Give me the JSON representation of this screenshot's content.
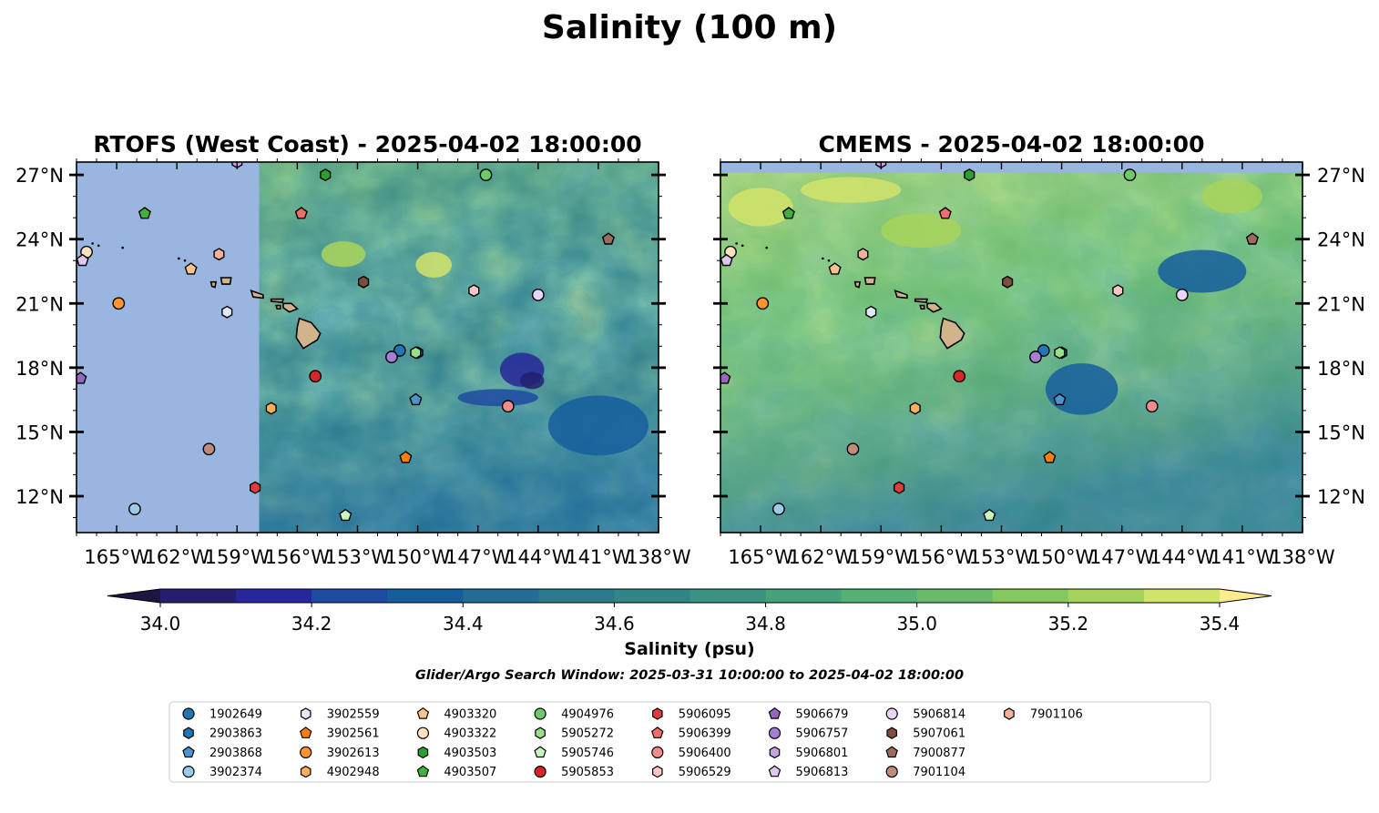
{
  "chart_data": {
    "type": "heatmap",
    "title": "Salinity (100 m)",
    "colorbar": {
      "label": "Salinity (psu)",
      "min": 34.0,
      "max": 35.4,
      "step": 0.1,
      "ticks": [
        "34.0",
        "34.2",
        "34.4",
        "34.6",
        "34.8",
        "35.0",
        "35.2",
        "35.4"
      ],
      "colors": [
        "#231f6e",
        "#28279a",
        "#1f4aa1",
        "#155e9d",
        "#236c93",
        "#2b7a8c",
        "#318586",
        "#3a9281",
        "#46a27b",
        "#55b073",
        "#68bb69",
        "#84c85f",
        "#a8d35b",
        "#d2e36a"
      ],
      "under_color": "#1d1640",
      "over_color": "#fdeb8f"
    },
    "subtitle": "Glider/Argo Search Window: 2025-03-31 10:00:00 to 2025-04-02 18:00:00",
    "x_ticks": [
      {
        "lon": -165,
        "label": "165°W"
      },
      {
        "lon": -162,
        "label": "162°W"
      },
      {
        "lon": -159,
        "label": "159°W"
      },
      {
        "lon": -156,
        "label": "156°W"
      },
      {
        "lon": -153,
        "label": "153°W"
      },
      {
        "lon": -150,
        "label": "150°W"
      },
      {
        "lon": -147,
        "label": "147°W"
      },
      {
        "lon": -144,
        "label": "144°W"
      },
      {
        "lon": -141,
        "label": "141°W"
      },
      {
        "lon": -138,
        "label": "138°W"
      }
    ],
    "y_ticks": [
      {
        "lat": 12,
        "label": "12°N"
      },
      {
        "lat": 15,
        "label": "15°N"
      },
      {
        "lat": 18,
        "label": "18°N"
      },
      {
        "lat": 21,
        "label": "21°N"
      },
      {
        "lat": 24,
        "label": "24°N"
      },
      {
        "lat": 27,
        "label": "27°N"
      }
    ],
    "xlim": [
      -167,
      -138
    ],
    "ylim": [
      10.3,
      27.6
    ],
    "panels": [
      {
        "title": "RTOFS (West Coast) - 2025-04-02 18:00:00",
        "no_data_west_of": -157.9,
        "base_color": "#2b7a8c"
      },
      {
        "title": "CMEMS - 2025-04-02 18:00:00",
        "no_data_north_of": 27.1,
        "base_color": "#55b073"
      }
    ],
    "floats": [
      {
        "id": "1902649",
        "marker": "circle",
        "color": "#1f77b4",
        "lon": -150.9,
        "lat": 18.8
      },
      {
        "id": "2903863",
        "marker": "hexagon",
        "color": "#1f77b4",
        "lon": -150.0,
        "lat": 18.7
      },
      {
        "id": "2903868",
        "marker": "pentagon",
        "color": "#4c93d1",
        "lon": -150.1,
        "lat": 16.5
      },
      {
        "id": "3902374",
        "marker": "circle",
        "color": "#9ecae9",
        "lon": -164.1,
        "lat": 11.4
      },
      {
        "id": "3902559",
        "marker": "hexagon",
        "color": "#deebf7",
        "lon": -159.5,
        "lat": 20.6
      },
      {
        "id": "3902561",
        "marker": "pentagon",
        "color": "#ff7f0e",
        "lon": -150.6,
        "lat": 13.8
      },
      {
        "id": "3902613",
        "marker": "circle",
        "color": "#ff9430",
        "lon": -164.9,
        "lat": 21.0
      },
      {
        "id": "4902948",
        "marker": "hexagon",
        "color": "#ffae5a",
        "lon": -157.3,
        "lat": 16.1
      },
      {
        "id": "4903320",
        "marker": "pentagon",
        "color": "#fdc38d",
        "lon": -161.3,
        "lat": 22.6
      },
      {
        "id": "4903322",
        "marker": "circle",
        "color": "#fde0c0",
        "lon": -166.5,
        "lat": 23.4
      },
      {
        "id": "4903503",
        "marker": "hexagon",
        "color": "#2ca02c",
        "lon": -154.6,
        "lat": 27.0
      },
      {
        "id": "4903507",
        "marker": "pentagon",
        "color": "#3cb43c",
        "lon": -163.6,
        "lat": 25.2
      },
      {
        "id": "4904976",
        "marker": "circle",
        "color": "#6cc96c",
        "lon": -146.6,
        "lat": 27.0
      },
      {
        "id": "5905272",
        "marker": "hexagon",
        "color": "#98df8a",
        "lon": -150.1,
        "lat": 18.7
      },
      {
        "id": "5905746",
        "marker": "pentagon",
        "color": "#c7f5bf",
        "lon": -153.6,
        "lat": 11.1
      },
      {
        "id": "5905853",
        "marker": "circle",
        "color": "#d62728",
        "lon": -155.1,
        "lat": 17.6
      },
      {
        "id": "5906095",
        "marker": "hexagon",
        "color": "#e03c3c",
        "lon": -158.1,
        "lat": 12.4
      },
      {
        "id": "5906399",
        "marker": "pentagon",
        "color": "#ef6d6d",
        "lon": -155.8,
        "lat": 25.2
      },
      {
        "id": "5906400",
        "marker": "circle",
        "color": "#f08c8c",
        "lon": -145.5,
        "lat": 16.2
      },
      {
        "id": "5906529",
        "marker": "hexagon",
        "color": "#ffc4c4",
        "lon": -147.2,
        "lat": 21.6
      },
      {
        "id": "5906679",
        "marker": "pentagon",
        "color": "#9467bd",
        "lon": -166.8,
        "lat": 17.5
      },
      {
        "id": "5906757",
        "marker": "circle",
        "color": "#a57fd1",
        "lon": -151.3,
        "lat": 18.5
      },
      {
        "id": "5906801",
        "marker": "hexagon",
        "color": "#c5a3e3",
        "lon": -159.0,
        "lat": 27.6
      },
      {
        "id": "5906813",
        "marker": "pentagon",
        "color": "#dcc8f0",
        "lon": -166.7,
        "lat": 23.0
      },
      {
        "id": "5906814",
        "marker": "circle",
        "color": "#e8d6fa",
        "lon": -144.0,
        "lat": 21.4
      },
      {
        "id": "5907061",
        "marker": "hexagon",
        "color": "#7f4d3e",
        "lon": -152.7,
        "lat": 22.0
      },
      {
        "id": "7900877",
        "marker": "pentagon",
        "color": "#9c6b5c",
        "lon": -140.5,
        "lat": 24.0
      },
      {
        "id": "7901104",
        "marker": "circle",
        "color": "#c18b7c",
        "lon": -160.4,
        "lat": 14.2
      },
      {
        "id": "7901106",
        "marker": "hexagon",
        "color": "#f2b09d",
        "lon": -159.9,
        "lat": 23.3
      }
    ]
  }
}
